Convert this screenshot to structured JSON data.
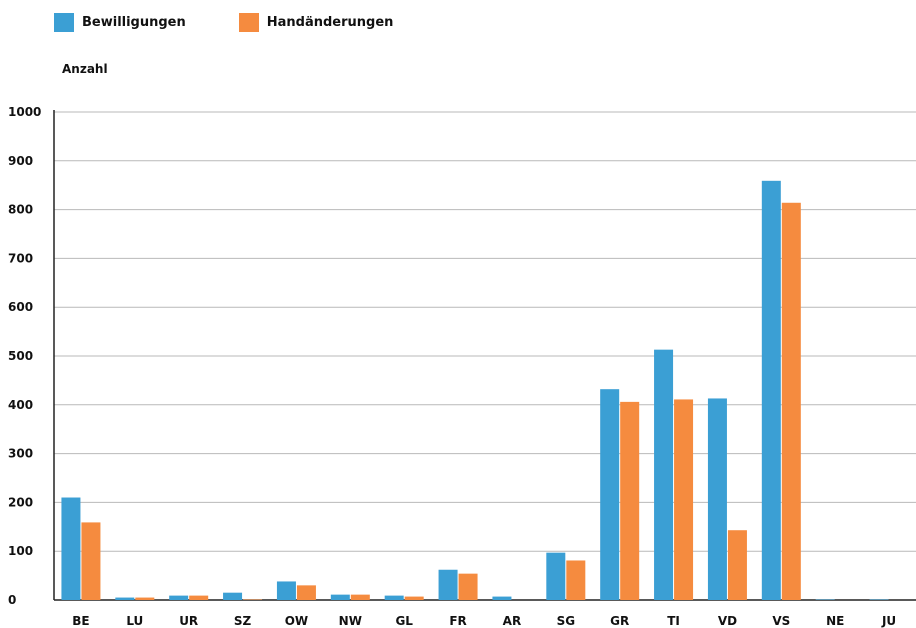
{
  "chart_data": {
    "type": "bar",
    "ylabel": "Anzahl",
    "ylim": [
      0,
      1000
    ],
    "yticks": [
      "0",
      "100",
      "200",
      "300",
      "400",
      "500",
      "600",
      "700",
      "800",
      "900",
      "1000"
    ],
    "categories": [
      "BE",
      "LU",
      "UR",
      "SZ",
      "OW",
      "NW",
      "GL",
      "FR",
      "AR",
      "SG",
      "GR",
      "TI",
      "VD",
      "VS",
      "NE",
      "JU"
    ],
    "series": [
      {
        "name": "Bewilligungen",
        "color": "#3b9fd4",
        "values": [
          210,
          5,
          9,
          15,
          38,
          11,
          9,
          62,
          7,
          97,
          432,
          513,
          413,
          859,
          1,
          1
        ]
      },
      {
        "name": "Handänderungen",
        "color": "#f58b3f",
        "values": [
          159,
          5,
          9,
          1,
          30,
          11,
          7,
          54,
          0,
          81,
          406,
          411,
          143,
          814,
          0,
          0
        ]
      }
    ],
    "grid": true,
    "legend_position": "top-left"
  }
}
